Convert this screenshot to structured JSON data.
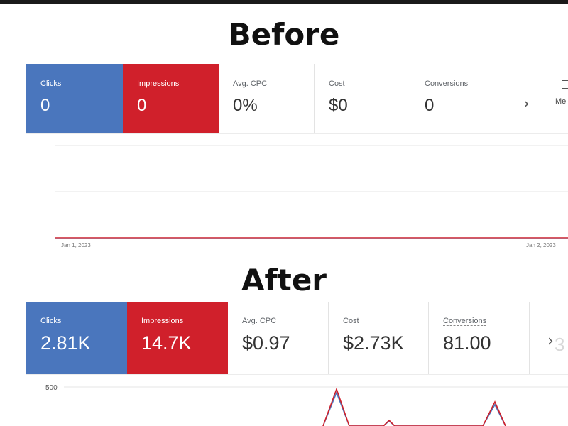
{
  "before": {
    "heading": "Before",
    "cards": [
      {
        "label": "Clicks",
        "value": "0",
        "color": "#4a76bd"
      },
      {
        "label": "Impressions",
        "value": "0",
        "color": "#d0202b"
      },
      {
        "label": "Avg. CPC",
        "value": "0%"
      },
      {
        "label": "Cost",
        "value": "$0"
      },
      {
        "label": "Conversions",
        "value": "0"
      }
    ],
    "more_icon": "chevron-right-icon",
    "metrics_label": "Me",
    "chart": {
      "x_start_label": "Jan 1, 2023",
      "x_end_label": "Jan 2, 2023",
      "line_color": "#d0202b"
    }
  },
  "after": {
    "heading": "After",
    "cards": [
      {
        "label": "Clicks",
        "value": "2.81K",
        "color": "#4a76bd"
      },
      {
        "label": "Impressions",
        "value": "14.7K",
        "color": "#d0202b"
      },
      {
        "label": "Avg. CPC",
        "value": "$0.97"
      },
      {
        "label": "Cost",
        "value": "$2.73K"
      },
      {
        "label": "Conversions",
        "value": "81.00"
      }
    ],
    "more_icon": "chevron-right-icon",
    "faded_value": "3",
    "chart": {
      "y_tick": "500",
      "clicks_color": "#4a76bd",
      "impressions_color": "#d0202b"
    }
  }
}
